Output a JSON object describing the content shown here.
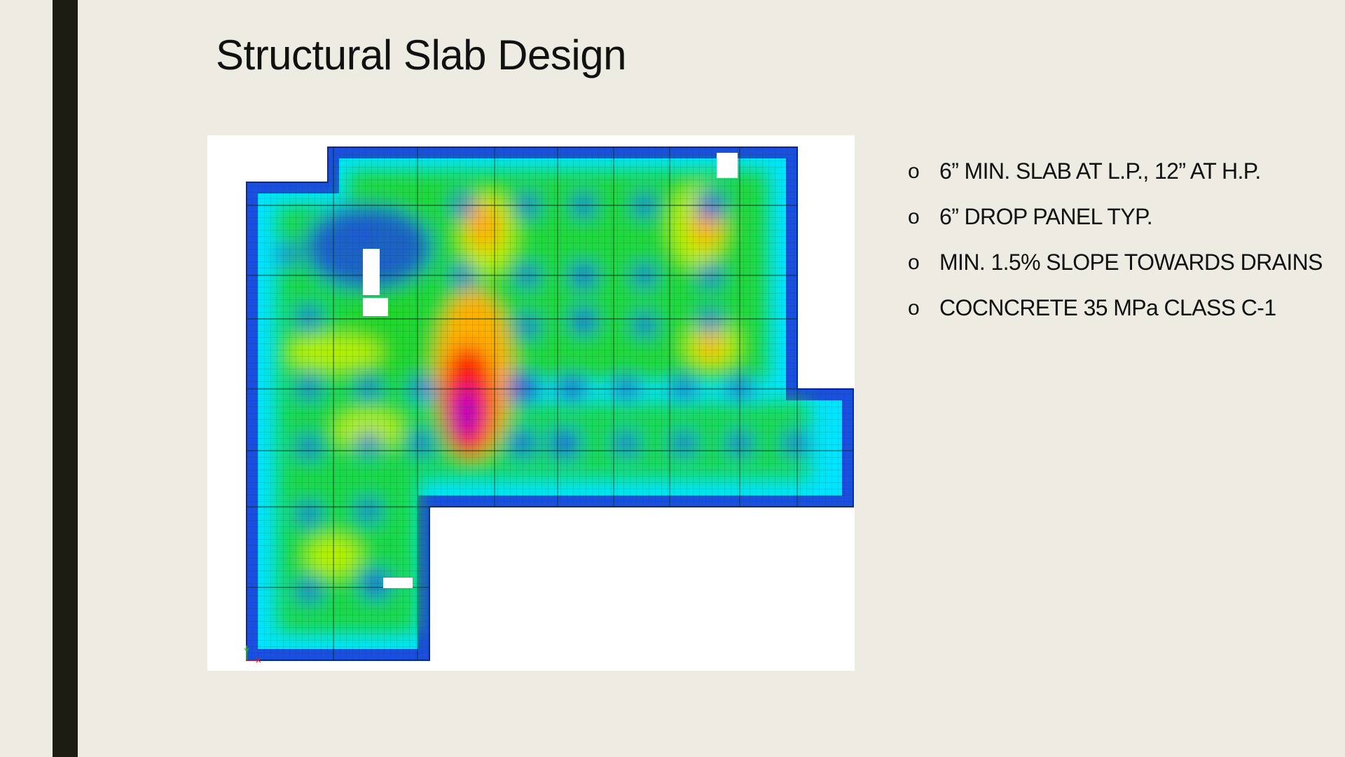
{
  "slide": {
    "title": "Structural Slab Design"
  },
  "bullets": [
    {
      "marker": "o",
      "text": "6” MIN. SLAB AT L.P., 12” AT H.P."
    },
    {
      "marker": "o",
      "text": "6” DROP PANEL TYP."
    },
    {
      "marker": "o",
      "text": "MIN. 1.5% SLOPE TOWARDS DRAINS"
    },
    {
      "marker": "o",
      "text": "COCNCRETE 35 MPa CLASS C-1"
    }
  ],
  "figure": {
    "description_icon": "slab-contour-plot",
    "colors": {
      "outline": "#0a2a9c",
      "low": "#1a4fe0",
      "mid_low": "#00e5ff",
      "mid": "#22d62a",
      "mid_high": "#b6f000",
      "high": "#ffb000",
      "peak": "#ff1a00",
      "max": "#b000c8"
    }
  }
}
